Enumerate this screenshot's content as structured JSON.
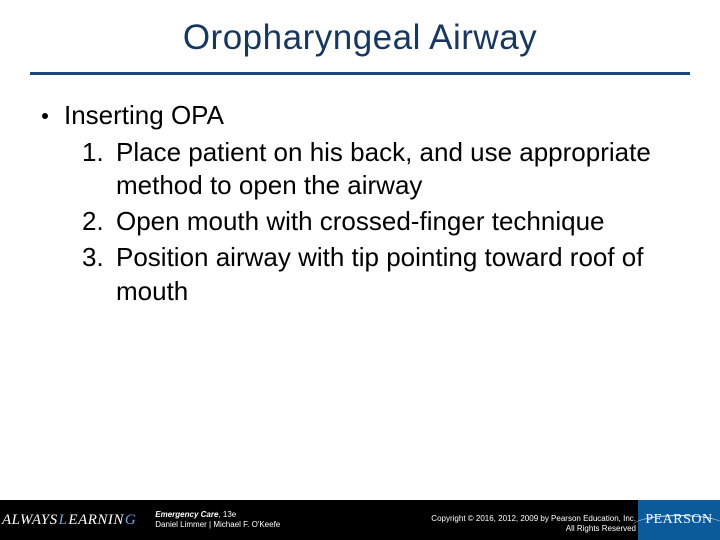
{
  "title": "Oropharyngeal Airway",
  "bullet": {
    "label": "Inserting OPA"
  },
  "steps": [
    {
      "num": "1.",
      "text": "Place patient on his back, and use appropriate method to open the airway"
    },
    {
      "num": "2.",
      "text": "Open mouth with crossed-finger technique"
    },
    {
      "num": "3.",
      "text": "Position airway with tip pointing toward roof of mouth"
    }
  ],
  "footer": {
    "always_learning_parts": {
      "a": "ALWAYS",
      "l1": "L",
      "e": "EARNIN",
      "g": "G"
    },
    "book_title": "Emergency Care",
    "book_edition": ", 13e",
    "authors": "Daniel Limmer | Michael F. O'Keefe",
    "copyright_line1": "Copyright © 2016, 2012, 2009 by Pearson Education, Inc.",
    "copyright_line2": "All Rights Reserved",
    "pearson": "PEARSON"
  },
  "colors": {
    "title_color": "#17375e",
    "rule_color": "#1f497d",
    "footer_bg": "#000000",
    "pearson_bg": "#0a5a9c",
    "accent_letter": "#6aa8e8"
  }
}
